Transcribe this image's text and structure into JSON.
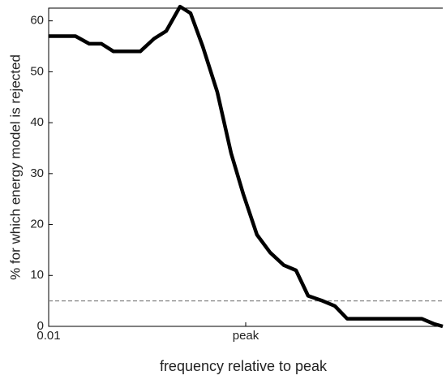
{
  "chart_data": {
    "type": "line",
    "x_label": "frequency relative to peak",
    "y_label": "% for which energy model is rejected",
    "x": [
      0.01,
      0.0187,
      0.0258,
      0.0343,
      0.0455,
      0.0851,
      0.1175,
      0.156,
      0.2155,
      0.2755,
      0.366,
      0.515,
      0.711,
      0.944,
      1.3,
      1.77,
      2.44,
      3.24,
      4.3,
      6.05,
      8.04,
      10.7,
      14.7,
      61.1,
      81.1,
      100
    ],
    "series": [
      {
        "color": "#000000",
        "values": [
          57,
          57,
          55.5,
          55.5,
          54,
          54,
          56.5,
          58,
          62.8,
          61.5,
          55,
          46,
          34,
          26,
          18,
          14.5,
          12,
          11,
          6,
          5,
          4,
          1.5,
          1.5,
          1.5,
          0.5,
          0
        ]
      }
    ],
    "xlim": [
      0.01,
      100
    ],
    "xscale": "log",
    "xticks": [
      {
        "value": 0.01,
        "label": "0.01"
      },
      {
        "value": 1,
        "label": "peak"
      }
    ],
    "ylim": [
      0,
      62.5
    ],
    "yticks": [
      0,
      10,
      20,
      30,
      40,
      50,
      60
    ],
    "reference_line": {
      "value": 5,
      "color": "#888888"
    }
  }
}
